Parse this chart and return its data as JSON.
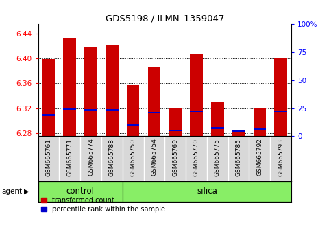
{
  "title": "GDS5198 / ILMN_1359047",
  "samples": [
    "GSM665761",
    "GSM665771",
    "GSM665774",
    "GSM665788",
    "GSM665750",
    "GSM665754",
    "GSM665769",
    "GSM665770",
    "GSM665775",
    "GSM665785",
    "GSM665792",
    "GSM665793"
  ],
  "groups": [
    "control",
    "control",
    "control",
    "control",
    "silica",
    "silica",
    "silica",
    "silica",
    "silica",
    "silica",
    "silica",
    "silica"
  ],
  "bar_values": [
    6.399,
    6.432,
    6.419,
    6.421,
    6.357,
    6.387,
    6.319,
    6.408,
    6.329,
    6.282,
    6.319,
    6.401
  ],
  "blue_values": [
    6.309,
    6.318,
    6.317,
    6.317,
    6.293,
    6.313,
    6.284,
    6.315,
    6.288,
    6.283,
    6.286,
    6.315
  ],
  "ymin": 6.275,
  "ymax": 6.455,
  "yticks_left": [
    6.28,
    6.32,
    6.36,
    6.4,
    6.44
  ],
  "yticks_right": [
    0,
    25,
    50,
    75,
    100
  ],
  "bar_color": "#cc0000",
  "blue_color": "#0000cc",
  "group_color": "#88ee66",
  "label_box_color": "#d8d8d8",
  "legend_red": "transformed count",
  "legend_blue": "percentile rank within the sample",
  "bar_width": 0.6,
  "control_count": 4,
  "silica_count": 8
}
